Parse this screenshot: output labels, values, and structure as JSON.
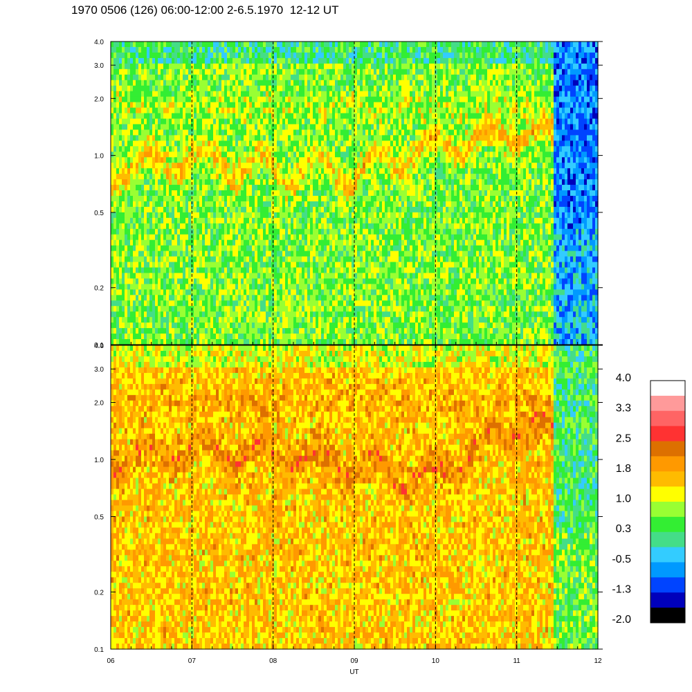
{
  "chart_data": {
    "type": "heatmap",
    "title": "1970 0506 (126) 06:00-12:00 2-6.5.1970  12-12 UT",
    "xlabel": "UT",
    "x_ticks": [
      "06",
      "07",
      "08",
      "09",
      "10",
      "11",
      "12"
    ],
    "xlim": [
      6,
      12
    ],
    "y_scale": "log",
    "y_ticks": [
      "0.1",
      "0.2",
      "0.5",
      "1.0",
      "2.0",
      "3.0",
      "4.0"
    ],
    "y_tick_values": [
      0.1,
      0.2,
      0.5,
      1.0,
      2.0,
      3.0,
      4.0
    ],
    "ylim": [
      0.1,
      4.0
    ],
    "dashed_vertical_lines_at": [
      7,
      8,
      9,
      10,
      11
    ],
    "panels": [
      {
        "id": "upper",
        "background_level": 0.6,
        "band_center_y": [
          0.85,
          0.95,
          0.85,
          0.8,
          1.1,
          1.3,
          1.2
        ],
        "band_level": 1.6,
        "upper_band_center_y": 1.8,
        "upper_band_level": 1.1,
        "dropout_start_x": 11.45,
        "dropout_level": -1.0
      },
      {
        "id": "lower",
        "background_level": 1.6,
        "band_center_y": [
          1.0,
          1.15,
          1.05,
          0.95,
          0.8,
          1.5,
          1.3
        ],
        "band_level": 2.2,
        "upper_band_center_y": 2.0,
        "upper_band_level": 1.9,
        "dropout_start_x": 11.45,
        "dropout_level": 0.2
      }
    ],
    "colorbar": {
      "labels": [
        "4.0",
        "3.3",
        "2.5",
        "1.8",
        "1.0",
        "0.3",
        "-0.5",
        "-1.3",
        "-2.0"
      ],
      "colors": [
        "#ffffff",
        "#ff9a9a",
        "#ff6464",
        "#ff3232",
        "#dd7000",
        "#ff9900",
        "#ffbb00",
        "#ffff00",
        "#99ff33",
        "#33ee33",
        "#44dd88",
        "#33ccff",
        "#0099ff",
        "#0044ff",
        "#0000bb",
        "#000000"
      ]
    }
  }
}
